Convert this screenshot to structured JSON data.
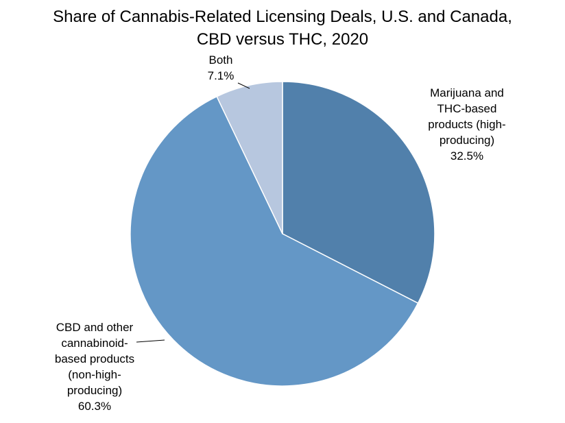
{
  "chart_data": {
    "type": "pie",
    "title_lines": [
      "Share of Cannabis-Related Licensing Deals, U.S. and Canada,",
      "CBD versus THC, 2020"
    ],
    "slices": [
      {
        "name": "Marijuana and THC-based products (high-producing)",
        "label_lines": [
          "Marijuana and",
          "THC-based",
          "products (high-",
          "producing)",
          "32.5%"
        ],
        "value": 32.5,
        "color": "#5180AB"
      },
      {
        "name": "CBD and other cannabinoid-based products (non-high-producing)",
        "label_lines": [
          "CBD and other",
          "cannabinoid-",
          "based products",
          "(non-high-",
          "producing)",
          "60.3%"
        ],
        "value": 60.3,
        "color": "#6497C6"
      },
      {
        "name": "Both",
        "label_lines": [
          "Both",
          "7.1%"
        ],
        "value": 7.1,
        "color": "#B7C7DF"
      }
    ],
    "start_angle": "12 o'clock",
    "direction": "clockwise",
    "legend": "none",
    "slice_border_color": "#FFFFFF"
  }
}
